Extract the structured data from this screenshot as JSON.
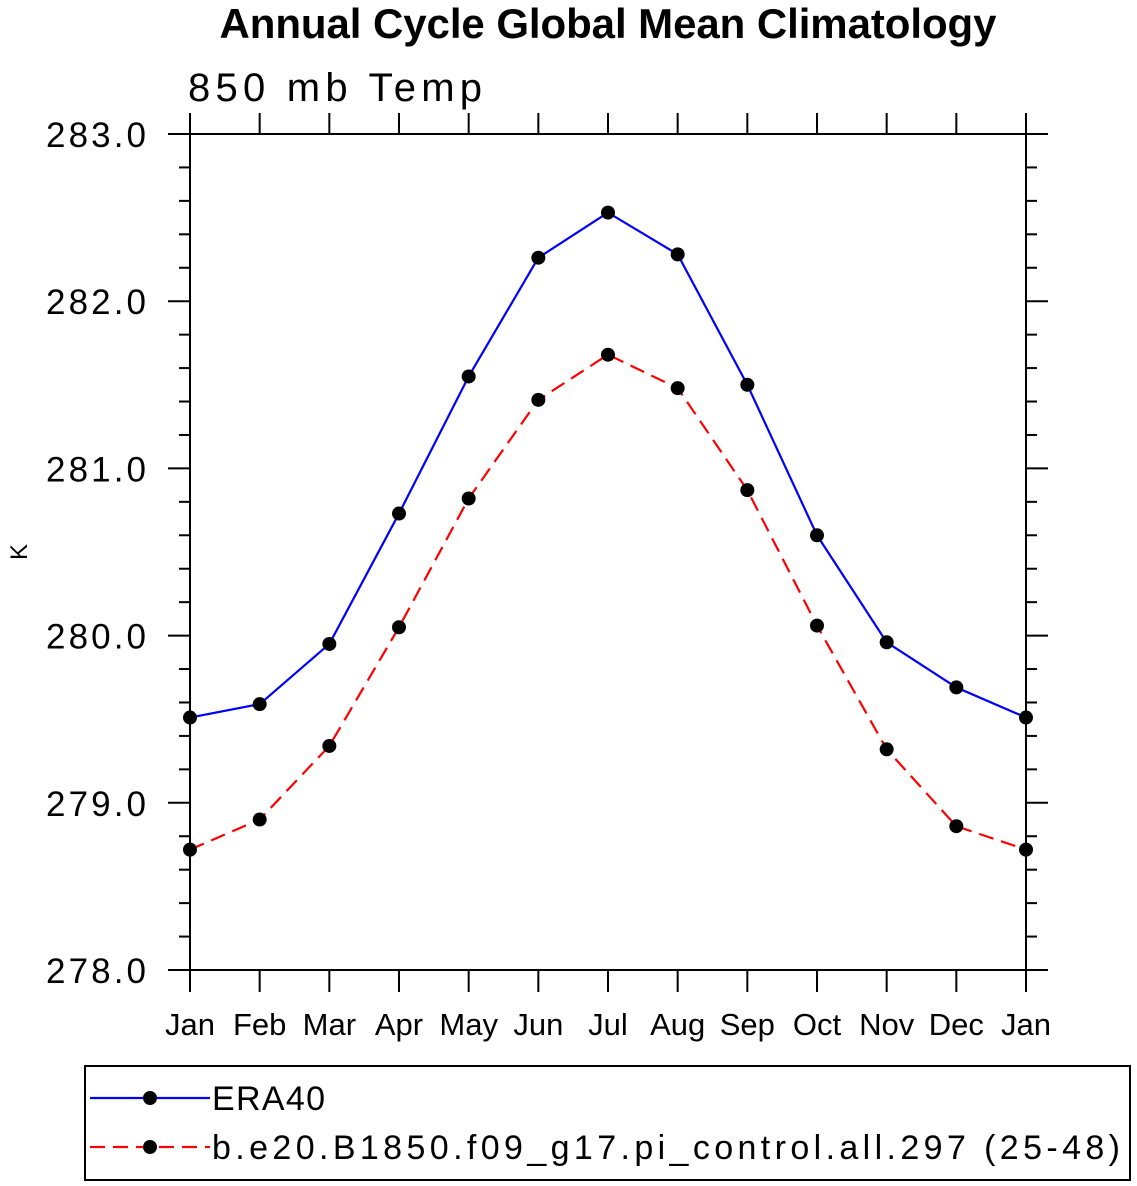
{
  "chart_data": {
    "type": "line",
    "title": "Annual Cycle Global Mean Climatology",
    "subtitle": "850 mb Temp",
    "ylabel": "K",
    "categories": [
      "Jan",
      "Feb",
      "Mar",
      "Apr",
      "May",
      "Jun",
      "Jul",
      "Aug",
      "Sep",
      "Oct",
      "Nov",
      "Dec",
      "Jan"
    ],
    "ylim": [
      278.0,
      283.0
    ],
    "yticks": [
      "278.0",
      "279.0",
      "280.0",
      "281.0",
      "282.0",
      "283.0"
    ],
    "y_minor_tick_step": 0.2,
    "grid": false,
    "legend_placement": "bottom",
    "series": [
      {
        "name": "ERA40",
        "color": "#0000ff",
        "line_style": "solid",
        "marker": "filled-circle",
        "marker_color": "#000000",
        "values": [
          279.51,
          279.59,
          279.95,
          280.73,
          281.55,
          282.26,
          282.53,
          282.28,
          281.5,
          280.6,
          279.96,
          279.69,
          279.51
        ]
      },
      {
        "name": "b.e20.B1850.f09_g17.pi_control.all.297 (25-48)",
        "color": "#ff0000",
        "line_style": "dashed",
        "marker": "filled-circle",
        "marker_color": "#000000",
        "values": [
          278.72,
          278.9,
          279.34,
          280.05,
          280.82,
          281.41,
          281.68,
          281.48,
          280.87,
          280.06,
          279.32,
          278.86,
          278.72
        ]
      }
    ]
  }
}
